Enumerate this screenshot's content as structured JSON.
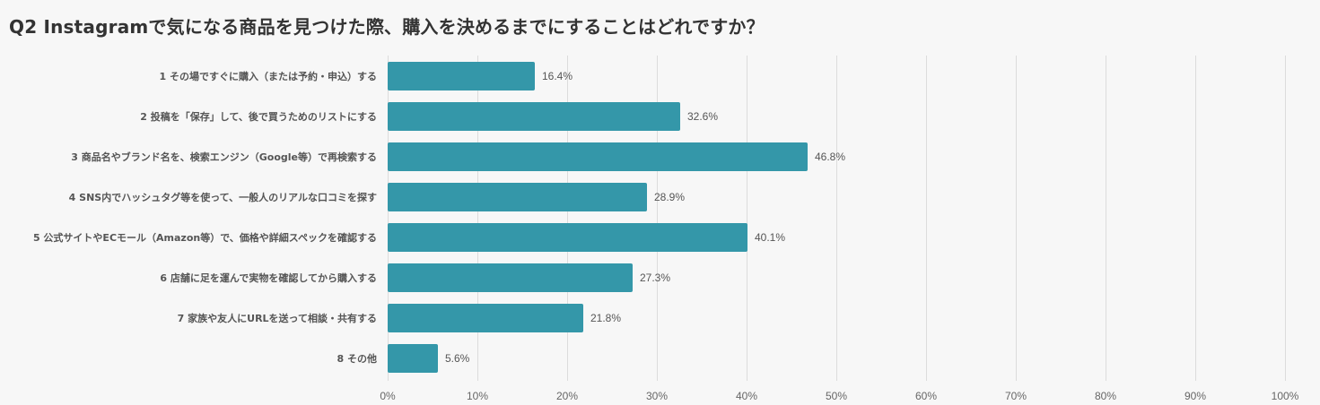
{
  "chart_data": {
    "type": "bar",
    "orientation": "horizontal",
    "title": "Q2 Instagramで気になる商品を見つけた際、購入を決めるまでにすることはどれですか？",
    "categories": [
      "1 その場ですぐに購入（または予約・申込）する",
      "2 投稿を「保存」して、後で買うためのリストにする",
      "3 商品名やブランド名を、検索エンジン（Google等）で再検索する",
      "4 SNS内でハッシュタグ等を使って、一般人のリアルな口コミを探す",
      "5 公式サイトやECモール（Amazon等）で、価格や詳細スペックを確認する",
      "6 店舗に足を運んで実物を確認してから購入する",
      "7 家族や友人にURLを送って相談・共有する",
      "8 その他"
    ],
    "values": [
      16.4,
      32.6,
      46.8,
      28.9,
      40.1,
      27.3,
      21.8,
      5.6
    ],
    "value_labels": [
      "16.4%",
      "32.6%",
      "46.8%",
      "28.9%",
      "40.1%",
      "27.3%",
      "21.8%",
      "5.6%"
    ],
    "xlim": [
      0,
      100
    ],
    "xticks": [
      0,
      10,
      20,
      30,
      40,
      50,
      60,
      70,
      80,
      90,
      100
    ],
    "xtick_labels": [
      "0%",
      "10%",
      "20%",
      "30%",
      "40%",
      "50%",
      "60%",
      "70%",
      "80%",
      "90%",
      "100%"
    ],
    "xlabel": "",
    "ylabel": "",
    "grid": true,
    "legend": false,
    "colors": {
      "bar": "#3497a9",
      "grid": "#dcdcdc",
      "background": "#f7f7f7"
    }
  }
}
